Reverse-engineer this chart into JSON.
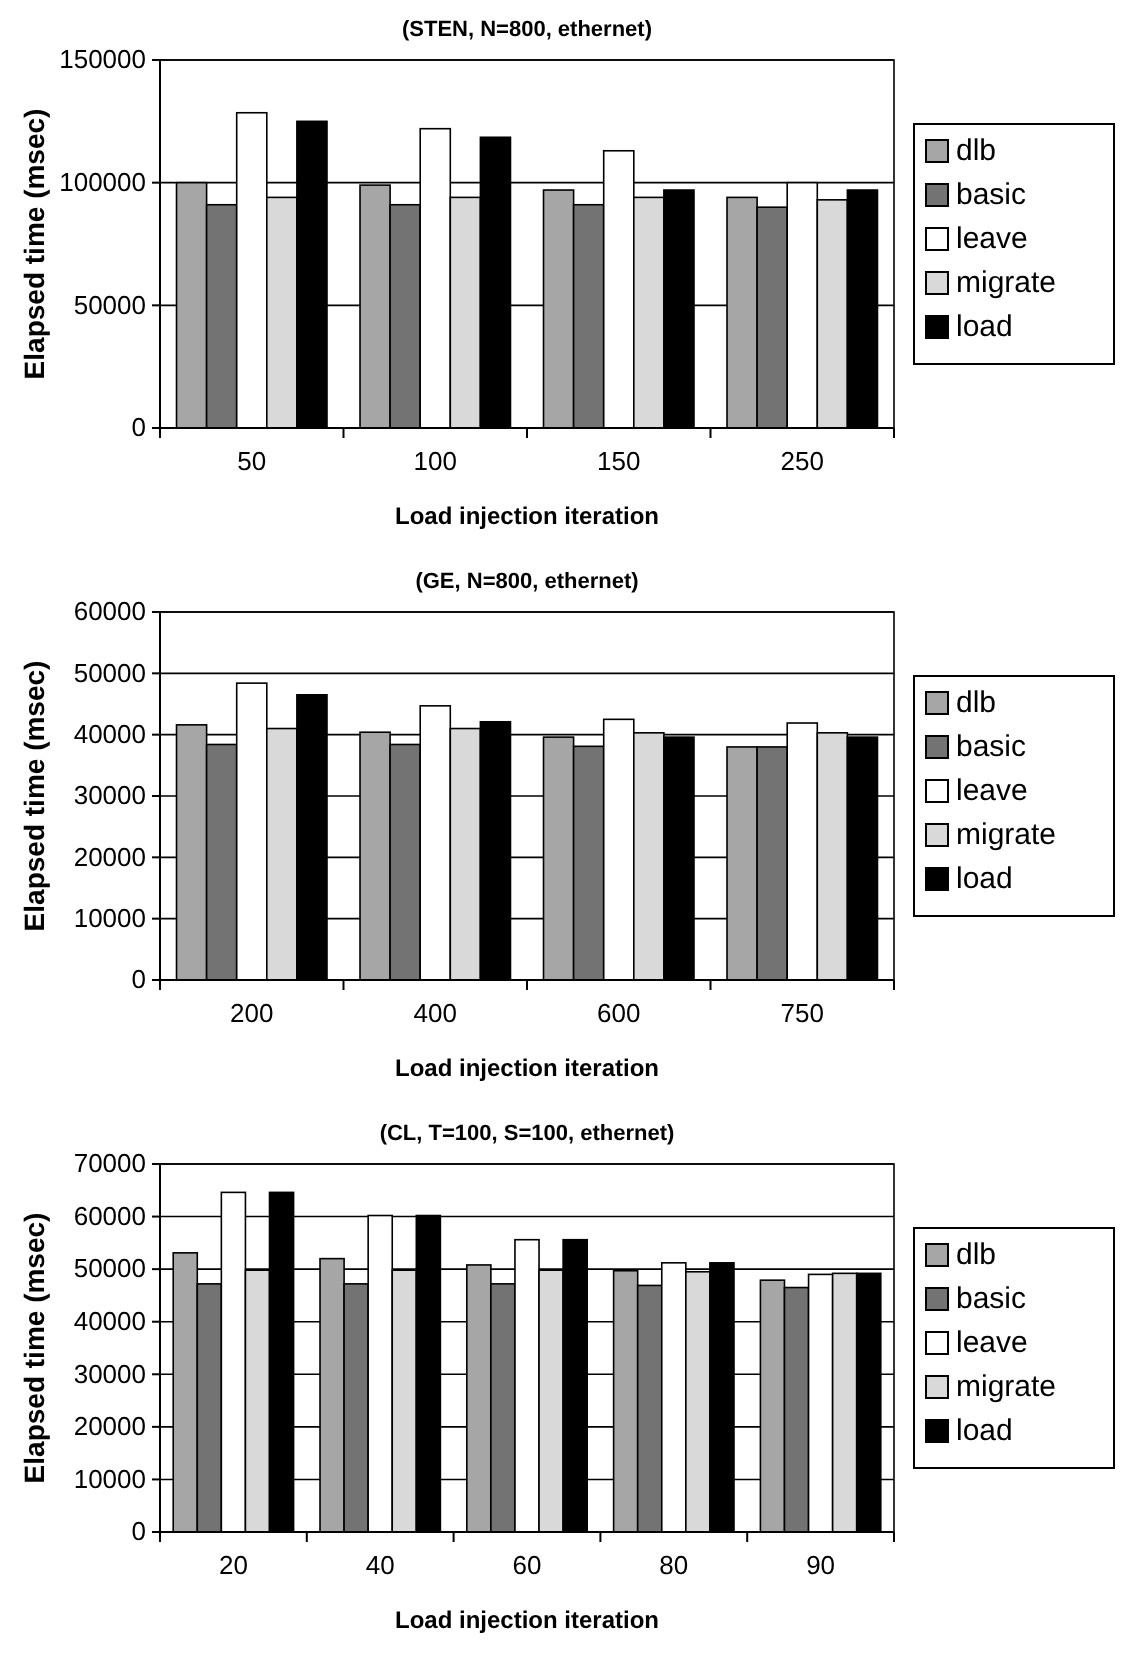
{
  "chart_data": [
    {
      "type": "bar",
      "title": "(STEN, N=800, ethernet)",
      "xlabel": "Load injection iteration",
      "ylabel": "Elapsed time (msec)",
      "categories": [
        "50",
        "100",
        "150",
        "250"
      ],
      "series": [
        {
          "name": "dlb",
          "color": "#a6a6a6",
          "values": [
            100000,
            99000,
            97000,
            94000
          ]
        },
        {
          "name": "basic",
          "color": "#737373",
          "values": [
            91000,
            91000,
            91000,
            90000
          ]
        },
        {
          "name": "leave",
          "color": "#ffffff",
          "values": [
            128500,
            122000,
            113000,
            100000
          ]
        },
        {
          "name": "migrate",
          "color": "#d9d9d9",
          "values": [
            94000,
            94000,
            94000,
            93000
          ]
        },
        {
          "name": "load",
          "color": "#000000",
          "values": [
            125000,
            118500,
            97000,
            97000
          ]
        }
      ],
      "ylim": [
        0,
        150000
      ],
      "yticks": [
        0,
        50000,
        100000,
        150000
      ],
      "grid": "y",
      "legend": "right"
    },
    {
      "type": "bar",
      "title": "(GE, N=800, ethernet)",
      "xlabel": "Load injection iteration",
      "ylabel": "Elapsed time (msec)",
      "categories": [
        "200",
        "400",
        "600",
        "750"
      ],
      "series": [
        {
          "name": "dlb",
          "color": "#a6a6a6",
          "values": [
            41600,
            40400,
            39600,
            38000
          ]
        },
        {
          "name": "basic",
          "color": "#737373",
          "values": [
            38400,
            38400,
            38100,
            38000
          ]
        },
        {
          "name": "leave",
          "color": "#ffffff",
          "values": [
            48400,
            44700,
            42500,
            41900
          ]
        },
        {
          "name": "migrate",
          "color": "#d9d9d9",
          "values": [
            41000,
            41000,
            40300,
            40300
          ]
        },
        {
          "name": "load",
          "color": "#000000",
          "values": [
            46500,
            42100,
            39600,
            39600
          ]
        }
      ],
      "ylim": [
        0,
        60000
      ],
      "yticks": [
        0,
        10000,
        20000,
        30000,
        40000,
        50000,
        60000
      ],
      "grid": "y",
      "legend": "right"
    },
    {
      "type": "bar",
      "title": "(CL, T=100, S=100, ethernet)",
      "xlabel": "Load injection iteration",
      "ylabel": "Elapsed time (msec)",
      "categories": [
        "20",
        "40",
        "60",
        "80",
        "90"
      ],
      "series": [
        {
          "name": "dlb",
          "color": "#a6a6a6",
          "values": [
            53100,
            52000,
            50800,
            49700,
            47900
          ]
        },
        {
          "name": "basic",
          "color": "#737373",
          "values": [
            47200,
            47200,
            47200,
            46900,
            46500
          ]
        },
        {
          "name": "leave",
          "color": "#ffffff",
          "values": [
            64600,
            60200,
            55600,
            51200,
            49000
          ]
        },
        {
          "name": "migrate",
          "color": "#d9d9d9",
          "values": [
            49800,
            49800,
            49800,
            49500,
            49200
          ]
        },
        {
          "name": "load",
          "color": "#000000",
          "values": [
            64600,
            60200,
            55600,
            51200,
            49200
          ]
        }
      ],
      "ylim": [
        0,
        70000
      ],
      "yticks": [
        0,
        10000,
        20000,
        30000,
        40000,
        50000,
        60000,
        70000
      ],
      "grid": "y",
      "legend": "right"
    }
  ]
}
